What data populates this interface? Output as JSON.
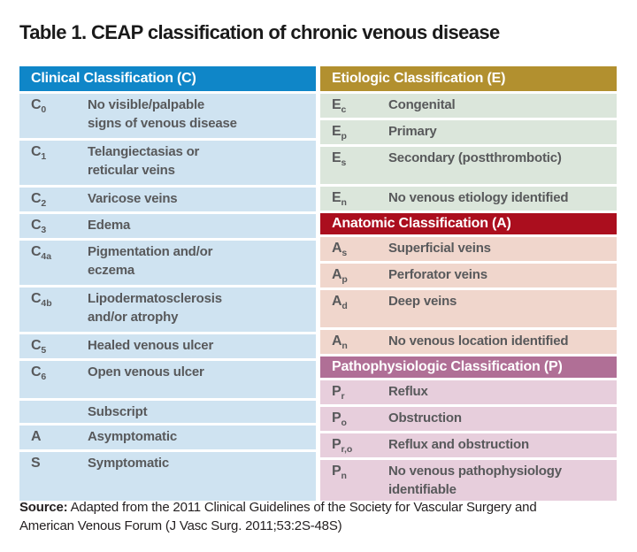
{
  "title": "Table 1. CEAP classification of chronic venous disease",
  "colors": {
    "clinical-header": "#0f86c8",
    "clinical-row": "#cfe3f1",
    "etiologic-header": "#b2902f",
    "etiologic-row": "#dbe6db",
    "anatomic-header": "#ab0e1e",
    "anatomic-row": "#f0d6cc",
    "pathophysiologic-header": "#b06f96",
    "pathophysiologic-row": "#e7cedc",
    "row-text": "#58595b"
  },
  "clinical": {
    "header": "Clinical Classification (C)",
    "rows": [
      {
        "code": "C",
        "sub": "0",
        "desc": "No visible/palpable\nsigns of venous disease"
      },
      {
        "code": "C",
        "sub": "1",
        "desc": "Telangiectasias or\nreticular veins"
      },
      {
        "code": "C",
        "sub": "2",
        "desc": "Varicose veins"
      },
      {
        "code": "C",
        "sub": "3",
        "desc": "Edema"
      },
      {
        "code": "C",
        "sub": "4a",
        "desc": "Pigmentation and/or\neczema"
      },
      {
        "code": "C",
        "sub": "4b",
        "desc": "Lipodermatosclerosis\nand/or atrophy"
      },
      {
        "code": "C",
        "sub": "5",
        "desc": "Healed venous ulcer"
      },
      {
        "code": "C",
        "sub": "6",
        "desc": "Open venous ulcer"
      },
      {
        "code": "",
        "sub": "",
        "desc": "Subscript"
      },
      {
        "code": "A",
        "sub": "",
        "desc": "Asymptomatic"
      },
      {
        "code": "S",
        "sub": "",
        "desc": "Symptomatic"
      }
    ]
  },
  "etiologic": {
    "header": "Etiologic Classification (E)",
    "rows": [
      {
        "code": "E",
        "sub": "c",
        "desc": "Congenital"
      },
      {
        "code": "E",
        "sub": "p",
        "desc": "Primary"
      },
      {
        "code": "E",
        "sub": "s",
        "desc": "Secondary (postthrombotic)"
      },
      {
        "code": "E",
        "sub": "n",
        "desc": "No venous etiology identified"
      }
    ]
  },
  "anatomic": {
    "header": "Anatomic Classification (A)",
    "rows": [
      {
        "code": "A",
        "sub": "s",
        "desc": "Superficial veins"
      },
      {
        "code": "A",
        "sub": "p",
        "desc": "Perforator veins"
      },
      {
        "code": "A",
        "sub": "d",
        "desc": "Deep veins"
      },
      {
        "code": "A",
        "sub": "n",
        "desc": "No venous location identified"
      }
    ]
  },
  "pathophysiologic": {
    "header": "Pathophysiologic Classification (P)",
    "rows": [
      {
        "code": "P",
        "sub": "r",
        "desc": "Reflux"
      },
      {
        "code": "P",
        "sub": "o",
        "desc": "Obstruction"
      },
      {
        "code": "P",
        "sub": "r,o",
        "desc": "Reflux and obstruction"
      },
      {
        "code": "P",
        "sub": "n",
        "desc": "No venous pathophysiology\nidentifiable"
      }
    ]
  },
  "footer": {
    "source_label": "Source:",
    "source_text": "Adapted from the 2011 Clinical Guidelines of the Society for Vascular Surgery and American Venous Forum (J Vasc Surg. 2011;53:2S-48S)"
  }
}
